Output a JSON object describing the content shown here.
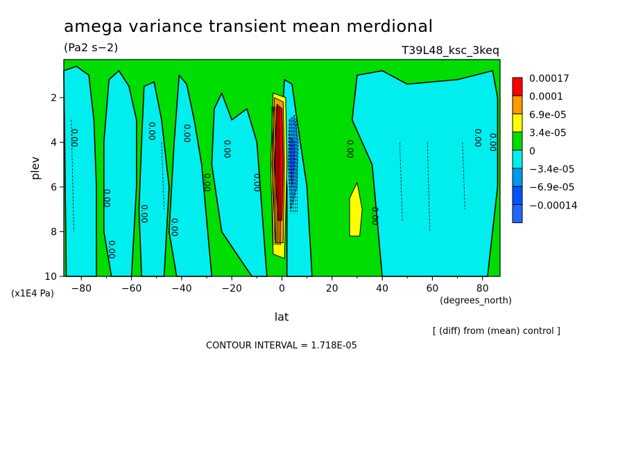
{
  "chart_data": {
    "type": "heatmap",
    "title": "amega variance transient mean merdional",
    "units": "(Pa2 s−2)",
    "experiment": "T39L48_ksc_3keq",
    "xlabel": "lat",
    "x_units": "(degrees_north)",
    "ylabel": "plev",
    "y_units": "(x1E4 Pa)",
    "x_ticks": [
      -80,
      -60,
      -40,
      -20,
      0,
      20,
      40,
      60,
      80
    ],
    "x_tick_labels": [
      "−80",
      "−60",
      "−40",
      "−20",
      "0",
      "20",
      "40",
      "60",
      "80"
    ],
    "xlim": [
      -87,
      87
    ],
    "y_ticks": [
      2,
      4,
      6,
      8,
      10
    ],
    "ylim": [
      10,
      0.3
    ],
    "legend": {
      "labels": [
        "0.00017",
        "0.0001",
        "6.9e-05",
        "3.4e-05",
        "0",
        "−3.4e-05",
        "−6.9e-05",
        "−0.00014"
      ],
      "colors": [
        "#ff0000",
        "#ff9900",
        "#ffff00",
        "#00dd00",
        "#00eeee",
        "#0099ee",
        "#0055ff",
        "#2266ff"
      ]
    },
    "contour_labels": [
      "0.00"
    ],
    "footnote": "[ (diff) from (mean) control ]",
    "contour_interval": "CONTOUR INTERVAL = 1.718E-05",
    "cyan_regions": [
      [
        [
          -87,
          0.8
        ],
        [
          -86,
          10
        ],
        [
          -74,
          10
        ],
        [
          -74,
          6
        ],
        [
          -75,
          3
        ],
        [
          -77,
          1
        ],
        [
          -82,
          0.6
        ]
      ],
      [
        [
          -69,
          1.2
        ],
        [
          -71,
          4
        ],
        [
          -71,
          8
        ],
        [
          -68,
          10
        ],
        [
          -60,
          10
        ],
        [
          -58,
          6
        ],
        [
          -58,
          3
        ],
        [
          -61,
          1.5
        ],
        [
          -65,
          0.8
        ]
      ],
      [
        [
          -55,
          1.5
        ],
        [
          -56,
          4
        ],
        [
          -57,
          7
        ],
        [
          -56,
          10
        ],
        [
          -47,
          10
        ],
        [
          -45,
          6
        ],
        [
          -48,
          3
        ],
        [
          -51,
          1.3
        ]
      ],
      [
        [
          -41,
          1.0
        ],
        [
          -43,
          4
        ],
        [
          -45,
          8
        ],
        [
          -42,
          10
        ],
        [
          -28,
          10
        ],
        [
          -32,
          5
        ],
        [
          -35,
          3
        ],
        [
          -38,
          1.4
        ]
      ],
      [
        [
          -27,
          2.5
        ],
        [
          -28,
          5
        ],
        [
          -24,
          8
        ],
        [
          -12,
          10
        ],
        [
          -6,
          10
        ],
        [
          -8,
          7
        ],
        [
          -10,
          4
        ],
        [
          -14,
          2.5
        ],
        [
          -20,
          3
        ],
        [
          -24,
          1.8
        ]
      ],
      [
        [
          1,
          1.2
        ],
        [
          0,
          3
        ],
        [
          2,
          6
        ],
        [
          2,
          10
        ],
        [
          12,
          10
        ],
        [
          10,
          6
        ],
        [
          6,
          3
        ],
        [
          4,
          1.4
        ]
      ],
      [
        [
          30,
          1.0
        ],
        [
          28,
          3
        ],
        [
          36,
          5
        ],
        [
          40,
          10
        ],
        [
          82,
          10
        ],
        [
          86,
          6
        ],
        [
          86,
          2
        ],
        [
          84,
          0.8
        ],
        [
          70,
          1.2
        ],
        [
          50,
          1.4
        ],
        [
          40,
          0.8
        ]
      ]
    ],
    "positive_regions": [
      {
        "color": "#ffff00",
        "points": [
          [
            -3.5,
            1.8
          ],
          [
            -4.5,
            5
          ],
          [
            -3.5,
            9
          ],
          [
            1,
            9.2
          ],
          [
            2,
            5
          ],
          [
            1.5,
            2
          ]
        ]
      },
      {
        "color": "#ff9900",
        "points": [
          [
            -3,
            2.0
          ],
          [
            -4,
            5
          ],
          [
            -2.5,
            8.5
          ],
          [
            0.5,
            8.5
          ],
          [
            1,
            5
          ],
          [
            0.5,
            2.2
          ]
        ]
      },
      {
        "color": "#ff0000",
        "points": [
          [
            -2,
            2.3
          ],
          [
            -3,
            5
          ],
          [
            -1.5,
            7.5
          ],
          [
            0,
            7.5
          ],
          [
            0.5,
            5
          ],
          [
            0,
            2.5
          ]
        ]
      },
      {
        "color": "#ffff00",
        "points": [
          [
            30,
            5.8
          ],
          [
            27,
            6.5
          ],
          [
            27,
            8.2
          ],
          [
            31,
            8.2
          ],
          [
            32,
            7
          ]
        ]
      }
    ],
    "negative_regions": [
      {
        "color": "#0099ee",
        "points": [
          [
            3,
            3.0
          ],
          [
            2.5,
            5
          ],
          [
            3.5,
            7
          ],
          [
            6,
            6
          ],
          [
            6.5,
            4
          ],
          [
            5,
            2.8
          ]
        ]
      },
      {
        "color": "#0055ff",
        "points": [
          [
            3.5,
            3.8
          ],
          [
            3.2,
            5
          ],
          [
            4,
            6
          ],
          [
            5,
            5
          ],
          [
            5.2,
            4
          ]
        ]
      }
    ]
  }
}
